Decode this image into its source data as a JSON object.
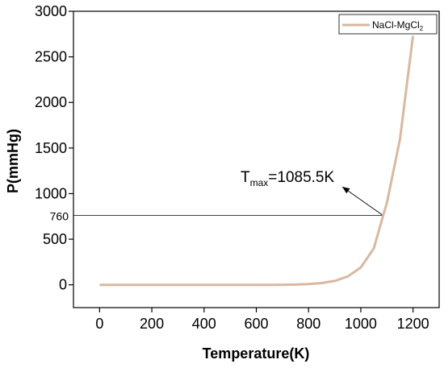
{
  "chart_data": {
    "type": "line",
    "xlabel": "Temperature(K)",
    "ylabel": "P(mmHg)",
    "xlim": [
      -100,
      1300
    ],
    "ylim": [
      -250,
      3000
    ],
    "x_ticks": [
      0,
      200,
      400,
      600,
      800,
      1000,
      1200
    ],
    "y_ticks": [
      0,
      500,
      1000,
      1500,
      2000,
      2500,
      3000
    ],
    "x_tick_labels": [
      "0",
      "200",
      "400",
      "600",
      "800",
      "1000",
      "1200"
    ],
    "y_tick_labels": [
      "0",
      "500",
      "1000",
      "1500",
      "2000",
      "2500",
      "3000"
    ],
    "legend_position": "top-right",
    "grid": false,
    "series": [
      {
        "name": "NaCl-MgCl2",
        "legend_label": {
          "main": "NaCl-MgCl",
          "subscript": "2"
        },
        "color": "#d9b8a0",
        "x": [
          0,
          100,
          200,
          300,
          400,
          500,
          600,
          650,
          700,
          750,
          800,
          850,
          900,
          950,
          1000,
          1050,
          1085.5,
          1100,
          1150,
          1200
        ],
        "y": [
          0,
          0,
          0,
          0,
          0,
          0,
          0,
          0,
          1,
          3,
          8,
          19,
          42,
          92,
          190,
          400,
          760,
          900,
          1600,
          2730
        ]
      }
    ],
    "annotations": {
      "reference_level": {
        "y": 760,
        "label": "760"
      },
      "tmax": {
        "prefix": "T",
        "subscript": "max",
        "value_text": "=1085.5K",
        "x": 1085.5,
        "y": 760
      }
    }
  }
}
